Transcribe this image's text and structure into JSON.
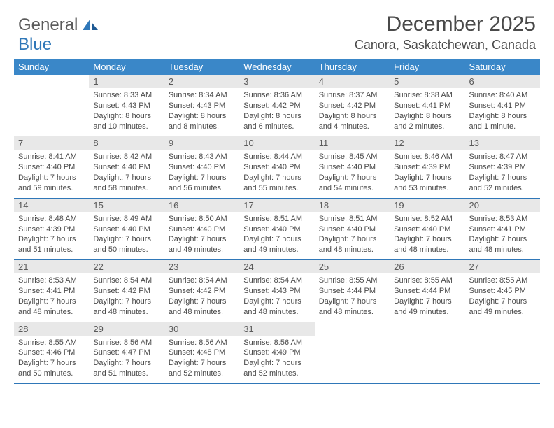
{
  "logo": {
    "word1": "General",
    "word2": "Blue"
  },
  "title": "December 2025",
  "location": "Canora, Saskatchewan, Canada",
  "colors": {
    "header_bg": "#3a87c8",
    "accent": "#2f77b8",
    "daynum_bg": "#e8e8e8",
    "text": "#4a4a4a"
  },
  "day_headers": [
    "Sunday",
    "Monday",
    "Tuesday",
    "Wednesday",
    "Thursday",
    "Friday",
    "Saturday"
  ],
  "weeks": [
    {
      "nums": [
        "",
        "1",
        "2",
        "3",
        "4",
        "5",
        "6"
      ],
      "cells": [
        null,
        {
          "sunrise": "Sunrise: 8:33 AM",
          "sunset": "Sunset: 4:43 PM",
          "day1": "Daylight: 8 hours",
          "day2": "and 10 minutes."
        },
        {
          "sunrise": "Sunrise: 8:34 AM",
          "sunset": "Sunset: 4:43 PM",
          "day1": "Daylight: 8 hours",
          "day2": "and 8 minutes."
        },
        {
          "sunrise": "Sunrise: 8:36 AM",
          "sunset": "Sunset: 4:42 PM",
          "day1": "Daylight: 8 hours",
          "day2": "and 6 minutes."
        },
        {
          "sunrise": "Sunrise: 8:37 AM",
          "sunset": "Sunset: 4:42 PM",
          "day1": "Daylight: 8 hours",
          "day2": "and 4 minutes."
        },
        {
          "sunrise": "Sunrise: 8:38 AM",
          "sunset": "Sunset: 4:41 PM",
          "day1": "Daylight: 8 hours",
          "day2": "and 2 minutes."
        },
        {
          "sunrise": "Sunrise: 8:40 AM",
          "sunset": "Sunset: 4:41 PM",
          "day1": "Daylight: 8 hours",
          "day2": "and 1 minute."
        }
      ]
    },
    {
      "nums": [
        "7",
        "8",
        "9",
        "10",
        "11",
        "12",
        "13"
      ],
      "cells": [
        {
          "sunrise": "Sunrise: 8:41 AM",
          "sunset": "Sunset: 4:40 PM",
          "day1": "Daylight: 7 hours",
          "day2": "and 59 minutes."
        },
        {
          "sunrise": "Sunrise: 8:42 AM",
          "sunset": "Sunset: 4:40 PM",
          "day1": "Daylight: 7 hours",
          "day2": "and 58 minutes."
        },
        {
          "sunrise": "Sunrise: 8:43 AM",
          "sunset": "Sunset: 4:40 PM",
          "day1": "Daylight: 7 hours",
          "day2": "and 56 minutes."
        },
        {
          "sunrise": "Sunrise: 8:44 AM",
          "sunset": "Sunset: 4:40 PM",
          "day1": "Daylight: 7 hours",
          "day2": "and 55 minutes."
        },
        {
          "sunrise": "Sunrise: 8:45 AM",
          "sunset": "Sunset: 4:40 PM",
          "day1": "Daylight: 7 hours",
          "day2": "and 54 minutes."
        },
        {
          "sunrise": "Sunrise: 8:46 AM",
          "sunset": "Sunset: 4:39 PM",
          "day1": "Daylight: 7 hours",
          "day2": "and 53 minutes."
        },
        {
          "sunrise": "Sunrise: 8:47 AM",
          "sunset": "Sunset: 4:39 PM",
          "day1": "Daylight: 7 hours",
          "day2": "and 52 minutes."
        }
      ]
    },
    {
      "nums": [
        "14",
        "15",
        "16",
        "17",
        "18",
        "19",
        "20"
      ],
      "cells": [
        {
          "sunrise": "Sunrise: 8:48 AM",
          "sunset": "Sunset: 4:39 PM",
          "day1": "Daylight: 7 hours",
          "day2": "and 51 minutes."
        },
        {
          "sunrise": "Sunrise: 8:49 AM",
          "sunset": "Sunset: 4:40 PM",
          "day1": "Daylight: 7 hours",
          "day2": "and 50 minutes."
        },
        {
          "sunrise": "Sunrise: 8:50 AM",
          "sunset": "Sunset: 4:40 PM",
          "day1": "Daylight: 7 hours",
          "day2": "and 49 minutes."
        },
        {
          "sunrise": "Sunrise: 8:51 AM",
          "sunset": "Sunset: 4:40 PM",
          "day1": "Daylight: 7 hours",
          "day2": "and 49 minutes."
        },
        {
          "sunrise": "Sunrise: 8:51 AM",
          "sunset": "Sunset: 4:40 PM",
          "day1": "Daylight: 7 hours",
          "day2": "and 48 minutes."
        },
        {
          "sunrise": "Sunrise: 8:52 AM",
          "sunset": "Sunset: 4:40 PM",
          "day1": "Daylight: 7 hours",
          "day2": "and 48 minutes."
        },
        {
          "sunrise": "Sunrise: 8:53 AM",
          "sunset": "Sunset: 4:41 PM",
          "day1": "Daylight: 7 hours",
          "day2": "and 48 minutes."
        }
      ]
    },
    {
      "nums": [
        "21",
        "22",
        "23",
        "24",
        "25",
        "26",
        "27"
      ],
      "cells": [
        {
          "sunrise": "Sunrise: 8:53 AM",
          "sunset": "Sunset: 4:41 PM",
          "day1": "Daylight: 7 hours",
          "day2": "and 48 minutes."
        },
        {
          "sunrise": "Sunrise: 8:54 AM",
          "sunset": "Sunset: 4:42 PM",
          "day1": "Daylight: 7 hours",
          "day2": "and 48 minutes."
        },
        {
          "sunrise": "Sunrise: 8:54 AM",
          "sunset": "Sunset: 4:42 PM",
          "day1": "Daylight: 7 hours",
          "day2": "and 48 minutes."
        },
        {
          "sunrise": "Sunrise: 8:54 AM",
          "sunset": "Sunset: 4:43 PM",
          "day1": "Daylight: 7 hours",
          "day2": "and 48 minutes."
        },
        {
          "sunrise": "Sunrise: 8:55 AM",
          "sunset": "Sunset: 4:44 PM",
          "day1": "Daylight: 7 hours",
          "day2": "and 48 minutes."
        },
        {
          "sunrise": "Sunrise: 8:55 AM",
          "sunset": "Sunset: 4:44 PM",
          "day1": "Daylight: 7 hours",
          "day2": "and 49 minutes."
        },
        {
          "sunrise": "Sunrise: 8:55 AM",
          "sunset": "Sunset: 4:45 PM",
          "day1": "Daylight: 7 hours",
          "day2": "and 49 minutes."
        }
      ]
    },
    {
      "nums": [
        "28",
        "29",
        "30",
        "31",
        "",
        "",
        ""
      ],
      "cells": [
        {
          "sunrise": "Sunrise: 8:55 AM",
          "sunset": "Sunset: 4:46 PM",
          "day1": "Daylight: 7 hours",
          "day2": "and 50 minutes."
        },
        {
          "sunrise": "Sunrise: 8:56 AM",
          "sunset": "Sunset: 4:47 PM",
          "day1": "Daylight: 7 hours",
          "day2": "and 51 minutes."
        },
        {
          "sunrise": "Sunrise: 8:56 AM",
          "sunset": "Sunset: 4:48 PM",
          "day1": "Daylight: 7 hours",
          "day2": "and 52 minutes."
        },
        {
          "sunrise": "Sunrise: 8:56 AM",
          "sunset": "Sunset: 4:49 PM",
          "day1": "Daylight: 7 hours",
          "day2": "and 52 minutes."
        },
        null,
        null,
        null
      ]
    }
  ]
}
